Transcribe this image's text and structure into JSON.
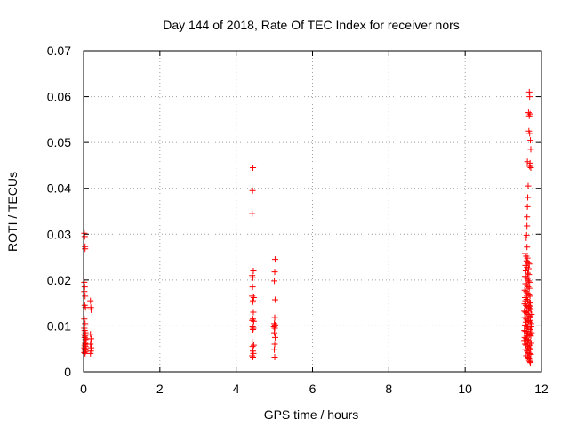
{
  "chart_data": {
    "type": "scatter",
    "title": "Day 144 of 2018, Rate Of TEC Index for receiver nors",
    "xlabel": "GPS time / hours",
    "ylabel": "ROTI / TECUs",
    "xlim": [
      0,
      12
    ],
    "ylim": [
      0,
      0.07
    ],
    "x_ticks": [
      "0",
      "2",
      "4",
      "6",
      "8",
      "10",
      "12"
    ],
    "y_ticks": [
      "0",
      "0.01",
      "0.02",
      "0.03",
      "0.04",
      "0.05",
      "0.06",
      "0.07"
    ],
    "grid": true,
    "legend": "none",
    "marker": "+",
    "color": "#ff0000",
    "points": [
      [
        0.02,
        0.0302
      ],
      [
        0.03,
        0.0295
      ],
      [
        0.04,
        0.0273
      ],
      [
        0.04,
        0.0268
      ],
      [
        0.02,
        0.0195
      ],
      [
        0.03,
        0.0185
      ],
      [
        0.02,
        0.0175
      ],
      [
        0.04,
        0.0165
      ],
      [
        0.03,
        0.0145
      ],
      [
        0.05,
        0.014
      ],
      [
        0.02,
        0.0115
      ],
      [
        0.04,
        0.0105
      ],
      [
        0.02,
        0.0095
      ],
      [
        0.03,
        0.009
      ],
      [
        0.05,
        0.0085
      ],
      [
        0.02,
        0.0082
      ],
      [
        0.04,
        0.0078
      ],
      [
        0.03,
        0.0075
      ],
      [
        0.05,
        0.007
      ],
      [
        0.02,
        0.0065
      ],
      [
        0.04,
        0.0062
      ],
      [
        0.03,
        0.0058
      ],
      [
        0.05,
        0.0055
      ],
      [
        0.02,
        0.0052
      ],
      [
        0.04,
        0.005
      ],
      [
        0.03,
        0.0047
      ],
      [
        0.05,
        0.0044
      ],
      [
        0.02,
        0.0042
      ],
      [
        0.04,
        0.004
      ],
      [
        0.06,
        0.0048
      ],
      [
        0.06,
        0.006
      ],
      [
        0.07,
        0.0072
      ],
      [
        0.18,
        0.0155
      ],
      [
        0.19,
        0.014
      ],
      [
        0.2,
        0.0135
      ],
      [
        0.18,
        0.0082
      ],
      [
        0.2,
        0.0072
      ],
      [
        0.19,
        0.0065
      ],
      [
        0.18,
        0.006
      ],
      [
        0.2,
        0.0052
      ],
      [
        0.19,
        0.0045
      ],
      [
        0.18,
        0.004
      ],
      [
        4.44,
        0.0445
      ],
      [
        4.43,
        0.0395
      ],
      [
        4.42,
        0.0345
      ],
      [
        4.45,
        0.022
      ],
      [
        4.42,
        0.021
      ],
      [
        4.44,
        0.0205
      ],
      [
        4.43,
        0.0185
      ],
      [
        4.42,
        0.0165
      ],
      [
        4.46,
        0.0162
      ],
      [
        4.44,
        0.0155
      ],
      [
        4.43,
        0.0152
      ],
      [
        4.45,
        0.013
      ],
      [
        4.44,
        0.0115
      ],
      [
        4.42,
        0.0112
      ],
      [
        4.46,
        0.011
      ],
      [
        4.43,
        0.0098
      ],
      [
        4.45,
        0.0095
      ],
      [
        4.44,
        0.0092
      ],
      [
        4.42,
        0.0065
      ],
      [
        4.46,
        0.0058
      ],
      [
        4.43,
        0.0055
      ],
      [
        4.44,
        0.0045
      ],
      [
        4.45,
        0.004
      ],
      [
        4.42,
        0.0035
      ],
      [
        4.44,
        0.0032
      ],
      [
        5.02,
        0.0245
      ],
      [
        5.01,
        0.0218
      ],
      [
        5.0,
        0.0198
      ],
      [
        5.02,
        0.0157
      ],
      [
        5.01,
        0.0118
      ],
      [
        5.0,
        0.0105
      ],
      [
        5.02,
        0.0102
      ],
      [
        4.99,
        0.0098
      ],
      [
        5.01,
        0.0095
      ],
      [
        5.0,
        0.0085
      ],
      [
        5.02,
        0.0075
      ],
      [
        5.01,
        0.006
      ],
      [
        5.0,
        0.0048
      ],
      [
        5.01,
        0.0032
      ],
      [
        11.68,
        0.061
      ],
      [
        11.69,
        0.06
      ],
      [
        11.66,
        0.0565
      ],
      [
        11.7,
        0.0562
      ],
      [
        11.68,
        0.0558
      ],
      [
        11.67,
        0.0525
      ],
      [
        11.69,
        0.052
      ],
      [
        11.71,
        0.0505
      ],
      [
        11.72,
        0.0485
      ],
      [
        11.7,
        0.0455
      ],
      [
        11.69,
        0.0448
      ],
      [
        11.72,
        0.0445
      ],
      [
        11.63,
        0.0458
      ],
      [
        11.65,
        0.0405
      ],
      [
        11.64,
        0.038
      ],
      [
        11.63,
        0.036
      ],
      [
        11.62,
        0.0338
      ],
      [
        11.62,
        0.0318
      ],
      [
        11.61,
        0.0298
      ],
      [
        11.6,
        0.0292
      ],
      [
        11.62,
        0.0272
      ],
      [
        11.57,
        0.0258
      ],
      [
        11.6,
        0.0252
      ],
      [
        11.63,
        0.0248
      ],
      [
        11.61,
        0.0242
      ],
      [
        11.65,
        0.0238
      ],
      [
        11.68,
        0.0235
      ],
      [
        11.58,
        0.0232
      ],
      [
        11.62,
        0.0228
      ],
      [
        11.66,
        0.0225
      ],
      [
        11.59,
        0.022
      ],
      [
        11.64,
        0.0215
      ],
      [
        11.67,
        0.0212
      ],
      [
        11.57,
        0.0208
      ],
      [
        11.6,
        0.0205
      ],
      [
        11.63,
        0.0202
      ],
      [
        11.66,
        0.0198
      ],
      [
        11.69,
        0.0195
      ],
      [
        11.58,
        0.0192
      ],
      [
        11.62,
        0.0188
      ],
      [
        11.65,
        0.0185
      ],
      [
        11.68,
        0.0182
      ],
      [
        11.56,
        0.0178
      ],
      [
        11.6,
        0.0175
      ],
      [
        11.63,
        0.0172
      ],
      [
        11.67,
        0.0168
      ],
      [
        11.7,
        0.0165
      ],
      [
        11.57,
        0.0162
      ],
      [
        11.61,
        0.0158
      ],
      [
        11.64,
        0.0155
      ],
      [
        11.68,
        0.0152
      ],
      [
        11.71,
        0.015
      ],
      [
        11.56,
        0.0148
      ],
      [
        11.59,
        0.0145
      ],
      [
        11.62,
        0.0142
      ],
      [
        11.66,
        0.014
      ],
      [
        11.69,
        0.0138
      ],
      [
        11.72,
        0.0135
      ],
      [
        11.55,
        0.0132
      ],
      [
        11.58,
        0.013
      ],
      [
        11.61,
        0.0128
      ],
      [
        11.65,
        0.0125
      ],
      [
        11.68,
        0.0122
      ],
      [
        11.71,
        0.012
      ],
      [
        11.56,
        0.0118
      ],
      [
        11.6,
        0.0115
      ],
      [
        11.63,
        0.0112
      ],
      [
        11.66,
        0.011
      ],
      [
        11.7,
        0.0108
      ],
      [
        11.73,
        0.0105
      ],
      [
        11.57,
        0.0102
      ],
      [
        11.6,
        0.01
      ],
      [
        11.64,
        0.0098
      ],
      [
        11.67,
        0.0095
      ],
      [
        11.71,
        0.0092
      ],
      [
        11.55,
        0.009
      ],
      [
        11.58,
        0.0088
      ],
      [
        11.62,
        0.0085
      ],
      [
        11.65,
        0.0082
      ],
      [
        11.69,
        0.008
      ],
      [
        11.72,
        0.0078
      ],
      [
        11.56,
        0.0075
      ],
      [
        11.59,
        0.0072
      ],
      [
        11.63,
        0.007
      ],
      [
        11.66,
        0.0068
      ],
      [
        11.7,
        0.0065
      ],
      [
        11.73,
        0.0062
      ],
      [
        11.57,
        0.006
      ],
      [
        11.6,
        0.0058
      ],
      [
        11.64,
        0.0055
      ],
      [
        11.67,
        0.0052
      ],
      [
        11.71,
        0.005
      ],
      [
        11.58,
        0.0048
      ],
      [
        11.62,
        0.0045
      ],
      [
        11.65,
        0.0042
      ],
      [
        11.69,
        0.004
      ],
      [
        11.72,
        0.0038
      ],
      [
        11.6,
        0.0035
      ],
      [
        11.64,
        0.0032
      ],
      [
        11.67,
        0.003
      ],
      [
        11.7,
        0.0028
      ],
      [
        11.68,
        0.0025
      ],
      [
        11.7,
        0.0022
      ],
      [
        11.71,
        0.002
      ],
      [
        11.62,
        0.0098
      ],
      [
        11.66,
        0.0132
      ],
      [
        11.7,
        0.0143
      ],
      [
        11.59,
        0.0108
      ],
      [
        11.73,
        0.0098
      ],
      [
        11.61,
        0.0078
      ],
      [
        11.69,
        0.0058
      ],
      [
        11.65,
        0.0062
      ],
      [
        11.74,
        0.0125
      ],
      [
        11.74,
        0.0085
      ],
      [
        11.58,
        0.0155
      ],
      [
        11.62,
        0.0165
      ],
      [
        11.67,
        0.0145
      ],
      [
        11.71,
        0.0112
      ],
      [
        11.55,
        0.0068
      ],
      [
        11.63,
        0.0088
      ]
    ]
  }
}
